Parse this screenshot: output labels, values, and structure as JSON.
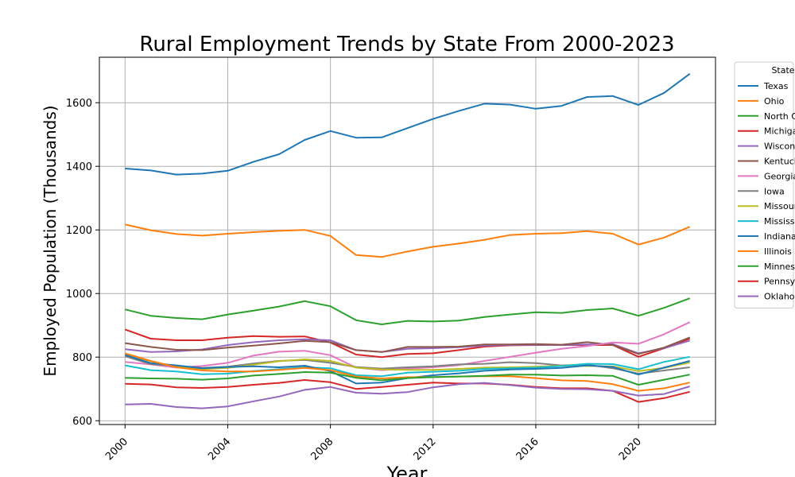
{
  "chart_data": {
    "type": "line",
    "title": "Rural Employment Trends by State From 2000-2023",
    "xlabel": "Year",
    "ylabel": "Employed Population (Thousands)",
    "x": [
      2000,
      2001,
      2002,
      2003,
      2004,
      2005,
      2006,
      2007,
      2008,
      2009,
      2010,
      2011,
      2012,
      2013,
      2014,
      2015,
      2016,
      2017,
      2018,
      2019,
      2020,
      2021,
      2022
    ],
    "xlim": [
      1999.0,
      2023.0
    ],
    "ylim": [
      588,
      1743
    ],
    "xticks": [
      2000,
      2004,
      2008,
      2012,
      2016,
      2020
    ],
    "yticks": [
      600,
      800,
      1000,
      1200,
      1400,
      1600
    ],
    "grid": true,
    "legend": {
      "title": "State",
      "placement": "outside-right"
    },
    "series": [
      {
        "name": "Texas",
        "color": "#1f77b4",
        "values": [
          1393,
          1387,
          1374,
          1377,
          1386,
          1414,
          1438,
          1483,
          1511,
          1490,
          1491,
          1520,
          1549,
          1574,
          1597,
          1594,
          1581,
          1590,
          1618,
          1621,
          1593,
          1631,
          1691
        ]
      },
      {
        "name": "Ohio",
        "color": "#ff7f0e",
        "values": [
          1217,
          1199,
          1187,
          1182,
          1188,
          1193,
          1197,
          1200,
          1181,
          1121,
          1115,
          1132,
          1147,
          1157,
          1169,
          1184,
          1188,
          1190,
          1196,
          1188,
          1154,
          1176,
          1210
        ]
      },
      {
        "name": "North Carolina",
        "color": "#2ca02c",
        "values": [
          950,
          930,
          923,
          919,
          934,
          946,
          959,
          976,
          960,
          916,
          903,
          914,
          912,
          915,
          926,
          934,
          941,
          939,
          948,
          953,
          930,
          955,
          985
        ]
      },
      {
        "name": "Michigan",
        "color": "#d62728",
        "values": [
          887,
          858,
          853,
          853,
          861,
          866,
          864,
          865,
          846,
          808,
          800,
          810,
          812,
          822,
          833,
          837,
          838,
          838,
          838,
          838,
          801,
          828,
          858
        ]
      },
      {
        "name": "Wisconsin",
        "color": "#9467bd",
        "values": [
          825,
          816,
          818,
          824,
          838,
          847,
          853,
          856,
          853,
          822,
          816,
          826,
          828,
          831,
          836,
          838,
          839,
          838,
          840,
          841,
          812,
          828,
          852
        ]
      },
      {
        "name": "Kentucky",
        "color": "#8c564b",
        "values": [
          844,
          832,
          823,
          822,
          830,
          836,
          843,
          851,
          847,
          822,
          816,
          832,
          832,
          833,
          840,
          840,
          841,
          839,
          847,
          838,
          810,
          830,
          862
        ]
      },
      {
        "name": "Georgia",
        "color": "#e377c2",
        "values": [
          785,
          777,
          767,
          772,
          782,
          805,
          817,
          820,
          806,
          767,
          759,
          764,
          768,
          775,
          788,
          801,
          814,
          826,
          835,
          846,
          842,
          872,
          910
        ]
      },
      {
        "name": "Iowa",
        "color": "#7f7f7f",
        "values": [
          803,
          778,
          773,
          766,
          770,
          780,
          788,
          791,
          782,
          769,
          764,
          768,
          771,
          777,
          779,
          784,
          781,
          774,
          776,
          765,
          748,
          758,
          768
        ]
      },
      {
        "name": "Missouri",
        "color": "#bcbd22",
        "values": [
          808,
          787,
          770,
          762,
          766,
          776,
          787,
          793,
          788,
          767,
          761,
          760,
          760,
          763,
          767,
          768,
          770,
          773,
          772,
          771,
          756,
          766,
          783
        ]
      },
      {
        "name": "Mississippi",
        "color": "#17becf",
        "values": [
          774,
          759,
          755,
          746,
          748,
          756,
          762,
          768,
          765,
          743,
          740,
          751,
          754,
          757,
          763,
          765,
          767,
          772,
          779,
          778,
          762,
          785,
          801
        ]
      },
      {
        "name": "Indiana",
        "color": "#1f77b4",
        "values": [
          807,
          781,
          774,
          765,
          769,
          771,
          768,
          773,
          756,
          717,
          720,
          734,
          743,
          749,
          757,
          761,
          763,
          766,
          774,
          769,
          745,
          767,
          788
        ]
      },
      {
        "name": "Illinois",
        "color": "#ff7f0e",
        "values": [
          812,
          788,
          768,
          758,
          755,
          755,
          760,
          766,
          759,
          739,
          733,
          737,
          737,
          739,
          740,
          740,
          734,
          727,
          725,
          715,
          694,
          702,
          720
        ]
      },
      {
        "name": "Minnesota",
        "color": "#2ca02c",
        "values": [
          735,
          733,
          732,
          729,
          733,
          742,
          747,
          753,
          751,
          735,
          727,
          734,
          737,
          739,
          741,
          745,
          745,
          742,
          743,
          741,
          713,
          729,
          745
        ]
      },
      {
        "name": "Pennsylvania",
        "color": "#d62728",
        "values": [
          716,
          714,
          705,
          703,
          706,
          713,
          719,
          728,
          721,
          700,
          706,
          713,
          720,
          717,
          717,
          713,
          706,
          702,
          702,
          694,
          659,
          671,
          691
        ]
      },
      {
        "name": "Oklahoma",
        "color": "#9467bd",
        "values": [
          651,
          653,
          643,
          639,
          645,
          661,
          676,
          697,
          706,
          688,
          685,
          690,
          705,
          715,
          719,
          712,
          704,
          700,
          699,
          694,
          679,
          684,
          708
        ]
      }
    ]
  }
}
